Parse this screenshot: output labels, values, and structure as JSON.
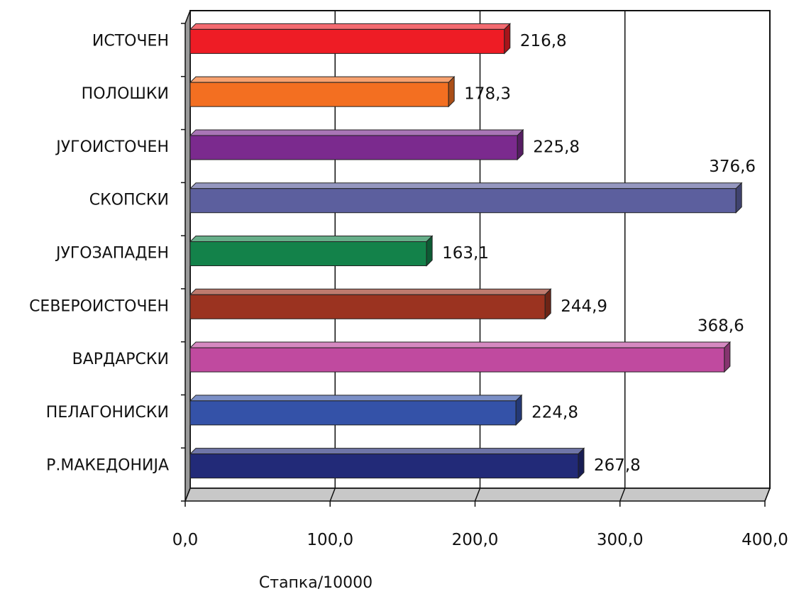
{
  "chart_data": {
    "type": "bar",
    "orientation": "horizontal",
    "categories": [
      "ИСТОЧЕН",
      "ПОЛОШКИ",
      "ЈУГОИСТОЧЕН",
      "СКОПСКИ",
      "ЈУГОЗАПАДЕН",
      "СЕВЕРОИСТОЧЕН",
      "ВАРДАРСКИ",
      "ПЕЛАГОНИСКИ",
      "Р.МАКЕДОНИЈА"
    ],
    "values": [
      216.8,
      178.3,
      225.8,
      376.6,
      163.1,
      244.9,
      368.6,
      224.8,
      267.8
    ],
    "value_labels": [
      "216,8",
      "178,3",
      "225,8",
      "376,6",
      "163,1",
      "244,9",
      "368,6",
      "224,8",
      "267,8"
    ],
    "colors": [
      "#ee1c25",
      "#f36f21",
      "#7b2a8e",
      "#5c5f9e",
      "#13824a",
      "#9b3320",
      "#c04a9f",
      "#3452a8",
      "#222a78"
    ],
    "xlim": [
      0,
      400
    ],
    "ticks": [
      0,
      100,
      200,
      300,
      400
    ],
    "tick_labels": [
      "0,0",
      "100,0",
      "200,0",
      "300,0",
      "400,0"
    ],
    "xlabel": "Стапка/10000",
    "ylabel": "",
    "title": "",
    "grid": true,
    "style": "3d"
  }
}
